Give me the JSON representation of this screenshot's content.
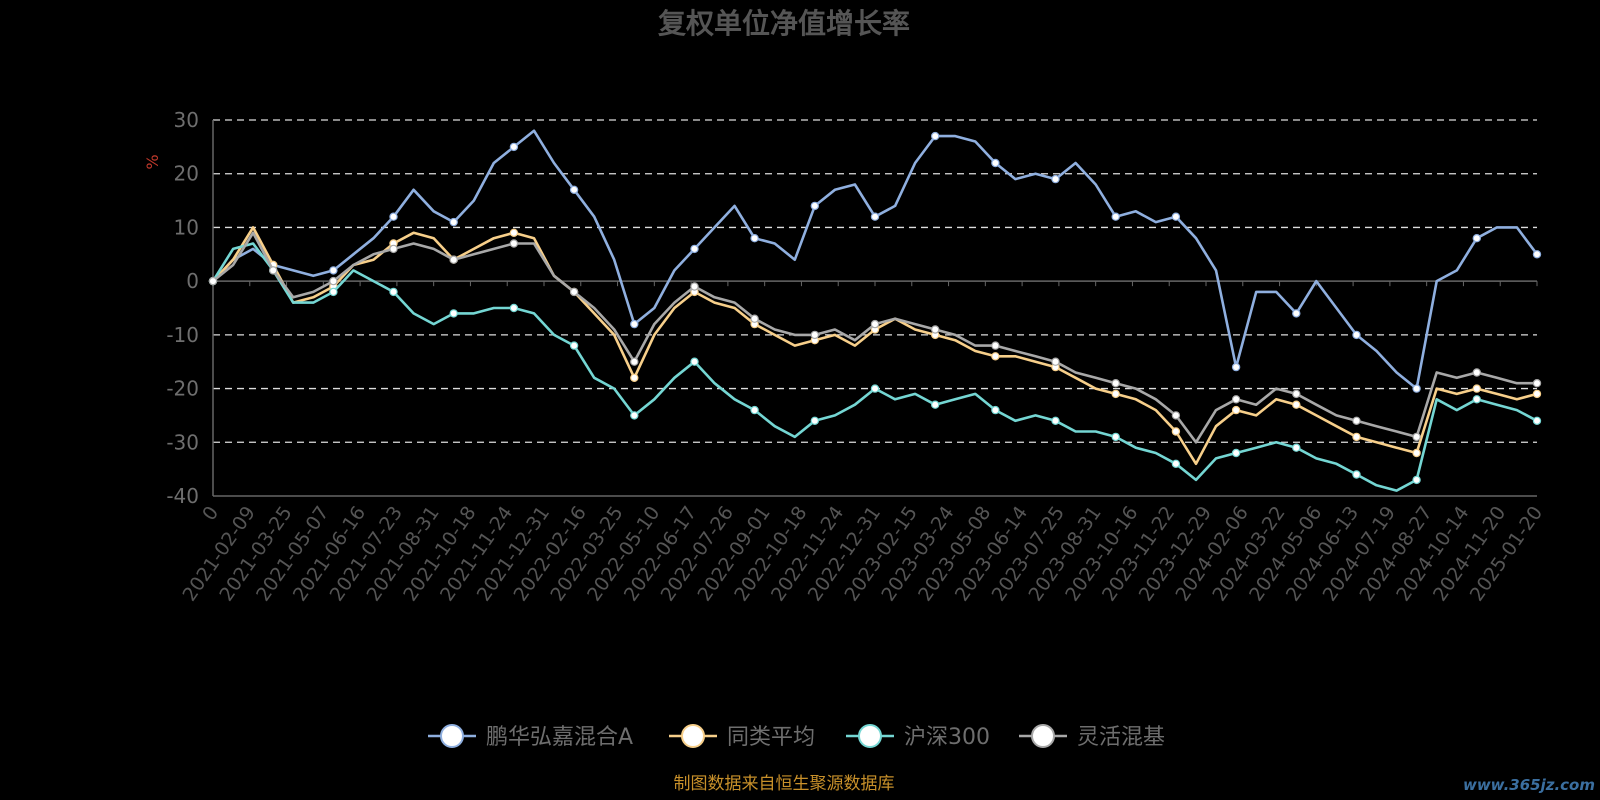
{
  "chart_data": {
    "type": "line",
    "title": "复权单位净值增长率",
    "ylabel": "%",
    "ylim": [
      -40,
      30
    ],
    "y_ticks": [
      30,
      20,
      10,
      0,
      -10,
      -20,
      -30,
      -40
    ],
    "grid": true,
    "legend_position": "bottom",
    "x_tick_labels": [
      "0",
      "2021-02-09",
      "2021-03-25",
      "2021-05-07",
      "2021-06-16",
      "2021-07-23",
      "2021-08-31",
      "2021-10-18",
      "2021-11-24",
      "2021-12-31",
      "2022-02-16",
      "2022-03-25",
      "2022-05-10",
      "2022-06-17",
      "2022-07-26",
      "2022-09-01",
      "2022-10-18",
      "2022-11-24",
      "2022-12-31",
      "2023-02-15",
      "2023-03-24",
      "2023-05-08",
      "2023-06-14",
      "2023-07-25",
      "2023-08-31",
      "2023-10-16",
      "2023-11-22",
      "2023-12-29",
      "2024-02-06",
      "2024-03-22",
      "2024-05-06",
      "2024-06-13",
      "2024-07-19",
      "2024-08-27",
      "2024-10-14",
      "2024-11-20",
      "2025-01-20"
    ],
    "series": [
      {
        "name": "鹏华弘嘉混合A",
        "color": "#8fafdf",
        "values": [
          0,
          4,
          6,
          3,
          2,
          1,
          2,
          5,
          8,
          12,
          17,
          13,
          11,
          15,
          22,
          25,
          28,
          22,
          17,
          12,
          4,
          -8,
          -5,
          2,
          6,
          10,
          14,
          8,
          7,
          4,
          14,
          17,
          18,
          12,
          14,
          22,
          27,
          27,
          26,
          22,
          19,
          20,
          19,
          22,
          18,
          12,
          13,
          11,
          12,
          8,
          2,
          -16,
          -2,
          -2,
          -6,
          0,
          -5,
          -10,
          -13,
          -17,
          -20,
          0,
          2,
          8,
          10,
          10,
          5
        ]
      },
      {
        "name": "同类平均",
        "color": "#f7cf8a",
        "values": [
          0,
          4,
          10,
          3,
          -4,
          -3,
          -1,
          3,
          4,
          7,
          9,
          8,
          4,
          6,
          8,
          9,
          8,
          1,
          -2,
          -6,
          -10,
          -18,
          -10,
          -5,
          -2,
          -4,
          -5,
          -8,
          -10,
          -12,
          -11,
          -10,
          -12,
          -9,
          -7,
          -9,
          -10,
          -11,
          -13,
          -14,
          -14,
          -15,
          -16,
          -18,
          -20,
          -21,
          -22,
          -24,
          -28,
          -34,
          -27,
          -24,
          -25,
          -22,
          -23,
          -25,
          -27,
          -29,
          -30,
          -31,
          -32,
          -20,
          -21,
          -20,
          -21,
          -22,
          -21
        ]
      },
      {
        "name": "沪深300",
        "color": "#74d6d3",
        "values": [
          0,
          6,
          7,
          2,
          -4,
          -4,
          -2,
          2,
          0,
          -2,
          -6,
          -8,
          -6,
          -6,
          -5,
          -5,
          -6,
          -10,
          -12,
          -18,
          -20,
          -25,
          -22,
          -18,
          -15,
          -19,
          -22,
          -24,
          -27,
          -29,
          -26,
          -25,
          -23,
          -20,
          -22,
          -21,
          -23,
          -22,
          -21,
          -24,
          -26,
          -25,
          -26,
          -28,
          -28,
          -29,
          -31,
          -32,
          -34,
          -37,
          -33,
          -32,
          -31,
          -30,
          -31,
          -33,
          -34,
          -36,
          -38,
          -39,
          -37,
          -22,
          -24,
          -22,
          -23,
          -24,
          -26
        ]
      },
      {
        "name": "灵活混基",
        "color": "#a8a8a8",
        "values": [
          0,
          3,
          9,
          2,
          -3,
          -2,
          0,
          3,
          5,
          6,
          7,
          6,
          4,
          5,
          6,
          7,
          7,
          1,
          -2,
          -5,
          -9,
          -15,
          -8,
          -4,
          -1,
          -3,
          -4,
          -7,
          -9,
          -10,
          -10,
          -9,
          -11,
          -8,
          -7,
          -8,
          -9,
          -10,
          -12,
          -12,
          -13,
          -14,
          -15,
          -17,
          -18,
          -19,
          -20,
          -22,
          -25,
          -30,
          -24,
          -22,
          -23,
          -20,
          -21,
          -23,
          -25,
          -26,
          -27,
          -28,
          -29,
          -17,
          -18,
          -17,
          -18,
          -19,
          -19
        ]
      }
    ]
  },
  "source_note": "制图数据来自恒生聚源数据库",
  "watermark": "www.365jz.com"
}
